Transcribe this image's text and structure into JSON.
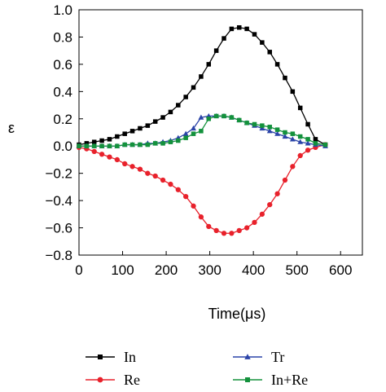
{
  "chart_data": {
    "type": "line",
    "xlabel": "Time(μs)",
    "ylabel": "ε",
    "xlim": [
      0,
      650
    ],
    "ylim": [
      -0.8,
      1.0
    ],
    "xticks": [
      0,
      100,
      200,
      300,
      400,
      500,
      600
    ],
    "yticks": [
      1.0,
      0.8,
      0.6,
      0.4,
      0.2,
      0.0,
      -0.2,
      -0.4,
      -0.6,
      -0.8
    ],
    "xtick_labels": [
      "0",
      "100",
      "200",
      "300",
      "400",
      "500",
      "600"
    ],
    "ytick_labels": [
      "1.0",
      "0.8",
      "0.6",
      "0.4",
      "0.2",
      "0.0",
      "−0.2",
      "−0.4",
      "−0.6",
      "−0.8"
    ],
    "grid": false,
    "legend_position": "bottom",
    "series": [
      {
        "name": "In",
        "color": "#000000",
        "marker": "square",
        "x": [
          0,
          17.5,
          35,
          52.5,
          70,
          87.5,
          105,
          122.5,
          140,
          157.5,
          175,
          192.5,
          210,
          227.5,
          245,
          262.5,
          280,
          297.5,
          315,
          332.5,
          350,
          367.5,
          385,
          402.5,
          420,
          437.5,
          455,
          472.5,
          490,
          507.5,
          525,
          542.5,
          565
        ],
        "y": [
          0.01,
          0.02,
          0.03,
          0.04,
          0.05,
          0.07,
          0.09,
          0.11,
          0.13,
          0.15,
          0.18,
          0.21,
          0.25,
          0.3,
          0.36,
          0.43,
          0.51,
          0.6,
          0.7,
          0.79,
          0.86,
          0.87,
          0.86,
          0.82,
          0.76,
          0.69,
          0.6,
          0.5,
          0.4,
          0.28,
          0.16,
          0.05,
          0.01
        ]
      },
      {
        "name": "Re",
        "color": "#e8212b",
        "marker": "circle",
        "x": [
          0,
          17.5,
          35,
          52.5,
          70,
          87.5,
          105,
          122.5,
          140,
          157.5,
          175,
          192.5,
          210,
          227.5,
          245,
          262.5,
          280,
          297.5,
          315,
          332.5,
          350,
          367.5,
          385,
          402.5,
          420,
          437.5,
          455,
          472.5,
          490,
          507.5,
          525,
          542.5,
          565
        ],
        "y": [
          -0.01,
          -0.02,
          -0.04,
          -0.06,
          -0.08,
          -0.1,
          -0.13,
          -0.15,
          -0.17,
          -0.2,
          -0.22,
          -0.25,
          -0.28,
          -0.32,
          -0.37,
          -0.44,
          -0.52,
          -0.59,
          -0.62,
          -0.64,
          -0.64,
          -0.62,
          -0.6,
          -0.56,
          -0.5,
          -0.43,
          -0.35,
          -0.25,
          -0.15,
          -0.07,
          -0.03,
          -0.01,
          0.01
        ]
      },
      {
        "name": "Tr",
        "color": "#2b44a8",
        "marker": "triangle",
        "x": [
          0,
          17.5,
          35,
          52.5,
          70,
          87.5,
          105,
          122.5,
          140,
          157.5,
          175,
          192.5,
          210,
          227.5,
          245,
          262.5,
          280,
          297.5,
          315,
          332.5,
          350,
          367.5,
          385,
          402.5,
          420,
          437.5,
          455,
          472.5,
          490,
          507.5,
          525,
          542.5,
          565
        ],
        "y": [
          0.0,
          0.0,
          0.0,
          0.0,
          0.0,
          0.0,
          0.01,
          0.01,
          0.01,
          0.02,
          0.02,
          0.03,
          0.04,
          0.06,
          0.09,
          0.13,
          0.21,
          0.22,
          0.22,
          0.22,
          0.21,
          0.19,
          0.17,
          0.15,
          0.13,
          0.11,
          0.09,
          0.07,
          0.05,
          0.03,
          0.02,
          0.01,
          0.0
        ]
      },
      {
        "name": "In+Re",
        "color": "#13913c",
        "marker": "square",
        "x": [
          0,
          17.5,
          35,
          52.5,
          70,
          87.5,
          105,
          122.5,
          140,
          157.5,
          175,
          192.5,
          210,
          227.5,
          245,
          262.5,
          280,
          297.5,
          315,
          332.5,
          350,
          367.5,
          385,
          402.5,
          420,
          437.5,
          455,
          472.5,
          490,
          507.5,
          525,
          542.5,
          565
        ],
        "y": [
          0.0,
          0.0,
          0.0,
          0.0,
          0.0,
          0.0,
          0.01,
          0.01,
          0.01,
          0.01,
          0.02,
          0.02,
          0.03,
          0.04,
          0.06,
          0.09,
          0.11,
          0.2,
          0.22,
          0.22,
          0.21,
          0.19,
          0.17,
          0.16,
          0.15,
          0.14,
          0.12,
          0.1,
          0.09,
          0.07,
          0.05,
          0.02,
          0.01
        ]
      }
    ]
  }
}
